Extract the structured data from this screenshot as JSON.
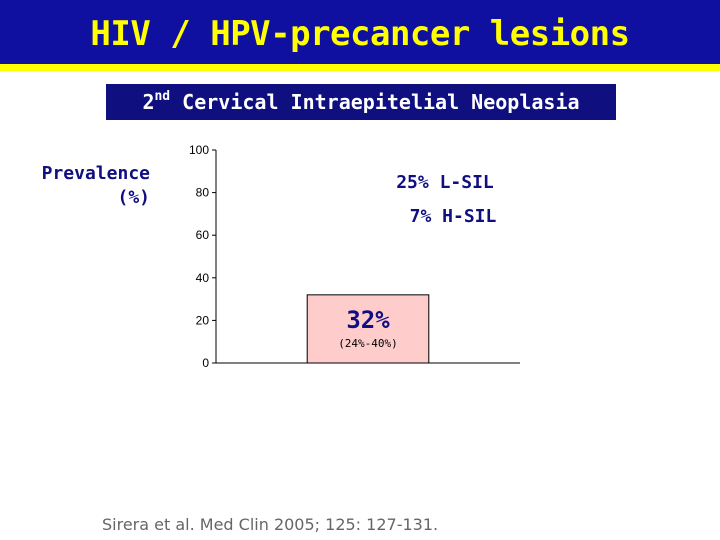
{
  "header": {
    "title": "HIV / HPV-precancer lesions"
  },
  "subtitle": {
    "ordinal": "2",
    "suffix": "nd",
    "text": " Cervical Intraepitelial Neoplasia"
  },
  "chart_data": {
    "type": "bar",
    "ylabel_line1": "Prevalence",
    "ylabel_line2": "(%)",
    "ylim": [
      0,
      100
    ],
    "yticks": [
      0,
      20,
      40,
      60,
      80,
      100
    ],
    "categories": [
      ""
    ],
    "values": [
      32
    ],
    "bar_labels": [
      "32%"
    ],
    "bar_ci_labels": [
      "(24%-40%)"
    ],
    "annotations": [
      "25% L-SIL",
      "7% H-SIL"
    ],
    "grid": false,
    "colors": {
      "bar_fill": "#ffcccc",
      "bar_stroke": "#000000",
      "label": "#0f0f80"
    }
  },
  "citation": "Sirera et al. Med Clin 2005; 125: 127-131."
}
